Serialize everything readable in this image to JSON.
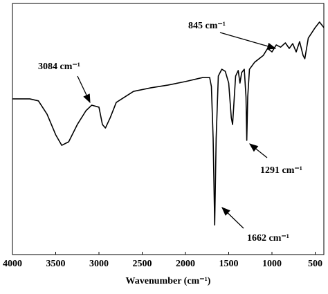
{
  "chart_data": {
    "type": "line",
    "x_label": "Wavenumber (cm⁻¹)",
    "annotations": [
      "3084 cm⁻¹",
      "845 cm⁻¹",
      "1291 cm⁻¹",
      "1662 cm⁻¹"
    ],
    "x": [
      4000,
      3800,
      3700,
      3600,
      3500,
      3430,
      3350,
      3250,
      3150,
      3084,
      3000,
      2960,
      2925,
      2870,
      2800,
      2600,
      2400,
      2200,
      2000,
      1800,
      1720,
      1700,
      1680,
      1662,
      1645,
      1620,
      1580,
      1540,
      1500,
      1470,
      1455,
      1440,
      1420,
      1390,
      1370,
      1350,
      1320,
      1300,
      1291,
      1280,
      1260,
      1200,
      1100,
      1050,
      1000,
      950,
      900,
      845,
      800,
      760,
      720,
      680,
      640,
      620,
      580,
      500,
      450,
      400
    ],
    "values": [
      62.0,
      62.0,
      61.2,
      55.9,
      47.7,
      43.5,
      44.9,
      51.8,
      57.3,
      59.5,
      58.7,
      51.8,
      50.4,
      54.5,
      60.6,
      65.0,
      66.4,
      67.5,
      68.9,
      70.5,
      70.5,
      66.9,
      46.3,
      11.8,
      46.3,
      71.1,
      73.8,
      73.0,
      68.3,
      54.5,
      51.8,
      60.1,
      71.1,
      73.3,
      68.3,
      72.5,
      73.8,
      62.8,
      45.5,
      62.8,
      73.8,
      76.6,
      79.3,
      82.1,
      80.7,
      83.5,
      82.6,
      84.3,
      82.1,
      84.0,
      80.7,
      84.8,
      79.3,
      78.0,
      86.2,
      90.4,
      92.6,
      90.4
    ],
    "color": "#000000",
    "xlim": [
      4000,
      400
    ],
    "ylim": [
      0,
      100
    ],
    "xticks": [
      4000,
      3500,
      3000,
      2500,
      2000,
      1500,
      1000,
      500
    ]
  }
}
